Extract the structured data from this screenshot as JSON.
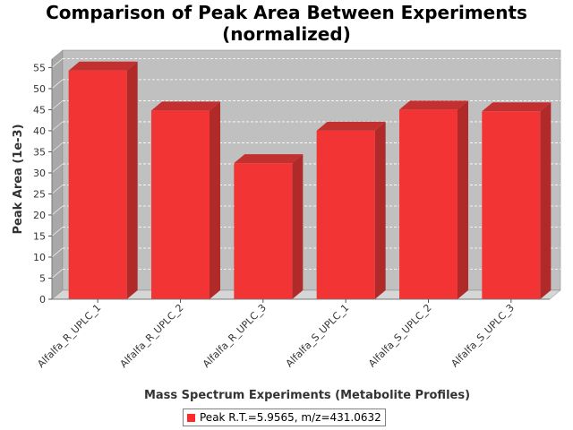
{
  "title_line1": "Comparison of Peak Area Between Experiments",
  "title_line2": "(normalized)",
  "colors": {
    "bar_front": "#f23434",
    "bar_top": "#c23030",
    "bar_side": "#b02a2a",
    "plot_back": "#c0c0c0",
    "plot_floor": "#d6d6d6",
    "plot_side": "#a8a8a8",
    "grid": "#ffffff"
  },
  "chart_data": {
    "type": "bar",
    "title": "Comparison of Peak Area Between Experiments (normalized)",
    "xlabel": "Mass Spectrum Experiments (Metabolite Profiles)",
    "ylabel": "Peak Area (1e-3)",
    "categories": [
      "Alfalfa_R_UPLC_1",
      "Alfalfa_R_UPLC_2",
      "Alfalfa_R_UPLC_3",
      "Alfalfa_S_UPLC_1",
      "Alfalfa_S_UPLC_2",
      "Alfalfa_S_UPLC_3"
    ],
    "series": [
      {
        "name": "Peak R.T.=5.9565, m/z=431.0632",
        "values": [
          54.3,
          44.8,
          32.3,
          40.0,
          45.0,
          44.6
        ]
      }
    ],
    "ylim": [
      0,
      57
    ],
    "yticks": [
      0,
      5,
      10,
      15,
      20,
      25,
      30,
      35,
      40,
      45,
      50,
      55
    ],
    "grid": true,
    "legend_position": "bottom"
  }
}
